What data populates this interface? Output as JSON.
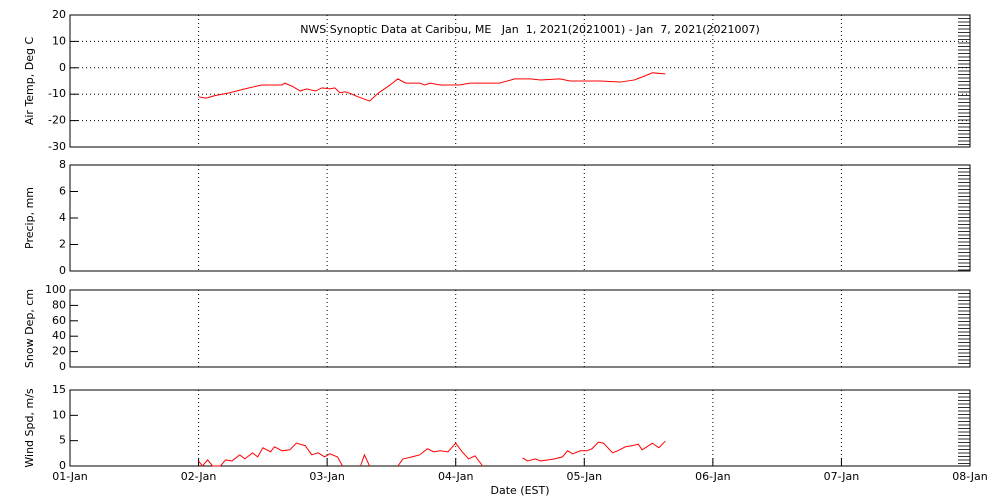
{
  "chart_data": [
    {
      "type": "line",
      "title": "NWS Synoptic Data at Caribou, ME   Jan  1, 2021(2021001) - Jan  7, 2021(2021007)",
      "ylabel": "Air Temp, Deg C",
      "ylim": [
        -30,
        20
      ],
      "yticks": [
        -30,
        -20,
        -10,
        0,
        10,
        20
      ],
      "xlim": [
        0,
        7
      ],
      "xticks": [
        1,
        2,
        3,
        4,
        5,
        6
      ],
      "grid": "both",
      "x": [
        1.0,
        1.06,
        1.13,
        1.24,
        1.36,
        1.49,
        1.65,
        1.67,
        1.73,
        1.79,
        1.84,
        1.91,
        1.96,
        2.02,
        2.06,
        2.1,
        2.14,
        2.19,
        2.24,
        2.33,
        2.4,
        2.49,
        2.55,
        2.61,
        2.72,
        2.76,
        2.8,
        2.88,
        3.03,
        3.11,
        3.34,
        3.46,
        3.58,
        3.66,
        3.81,
        3.89,
        4.12,
        4.28,
        4.39,
        4.47,
        4.53,
        4.63
      ],
      "series": [
        {
          "color": "#ff0000",
          "values": [
            -11,
            -11.5,
            -10.5,
            -9.5,
            -8,
            -6.5,
            -6.5,
            -5.8,
            -7,
            -8.8,
            -8,
            -8.8,
            -7.6,
            -8,
            -7.6,
            -9.5,
            -9.1,
            -9.9,
            -11,
            -12.6,
            -9.5,
            -6.5,
            -4.2,
            -5.8,
            -5.8,
            -6.5,
            -5.8,
            -6.5,
            -6.5,
            -5.8,
            -5.8,
            -4.2,
            -4.2,
            -4.6,
            -4.2,
            -5,
            -5,
            -5.4,
            -4.6,
            -3.1,
            -1.9,
            -2.3
          ]
        }
      ]
    },
    {
      "type": "line",
      "ylabel": "Precip, mm",
      "ylim": [
        0,
        8
      ],
      "yticks": [
        0,
        2,
        4,
        6,
        8
      ],
      "xlim": [
        0,
        7
      ],
      "xticks": [
        1,
        2,
        3,
        4,
        5,
        6
      ],
      "grid": "x"
    },
    {
      "type": "line",
      "ylabel": "Snow Dep, cm",
      "ylim": [
        0,
        100
      ],
      "yticks": [
        0,
        20,
        40,
        60,
        80,
        100
      ],
      "xlim": [
        0,
        7
      ],
      "xticks": [
        1,
        2,
        3,
        4,
        5,
        6
      ],
      "grid": "x"
    },
    {
      "type": "line",
      "ylabel": "Wind Spd, m/s",
      "xlabel": "Date (EST)",
      "ylim": [
        0,
        15
      ],
      "yticks": [
        0,
        5,
        10,
        15
      ],
      "xlim": [
        0,
        7
      ],
      "grid": "x",
      "xticks": [
        {
          "value": 0,
          "label": "01-Jan"
        },
        {
          "value": 1,
          "label": "02-Jan"
        },
        {
          "value": 2,
          "label": "03-Jan"
        },
        {
          "value": 3,
          "label": "04-Jan"
        },
        {
          "value": 4,
          "label": "05-Jan"
        },
        {
          "value": 5,
          "label": "06-Jan"
        },
        {
          "value": 6,
          "label": "07-Jan"
        },
        {
          "value": 7,
          "label": "08-Jan"
        }
      ],
      "x": [
        1.0,
        1.03,
        1.07,
        1.11,
        1.17,
        1.21,
        1.26,
        1.32,
        1.36,
        1.42,
        1.46,
        1.5,
        1.56,
        1.59,
        1.65,
        1.71,
        1.76,
        1.83,
        1.88,
        1.93,
        1.98,
        2.02,
        2.08,
        2.12,
        2.2,
        2.26,
        2.29,
        2.33,
        2.45,
        2.55,
        2.59,
        2.66,
        2.72,
        2.78,
        2.83,
        2.88,
        2.94,
        3.0,
        3.05,
        3.1,
        3.15,
        3.21,
        3.5,
        3.52,
        3.56,
        3.62,
        3.66,
        3.72,
        3.77,
        3.83,
        3.87,
        3.91,
        3.97,
        4.02,
        4.06,
        4.11,
        4.15,
        4.22,
        4.26,
        4.32,
        4.37,
        4.42,
        4.45,
        4.5,
        4.53,
        4.58,
        4.63
      ],
      "series": [
        {
          "color": "#ff0000",
          "values": [
            1.0,
            0,
            1.2,
            0,
            0,
            1.2,
            1.0,
            2.2,
            1.4,
            2.6,
            1.8,
            3.6,
            2.8,
            3.8,
            3.0,
            3.2,
            4.5,
            4.0,
            2.2,
            2.6,
            1.8,
            2.4,
            1.8,
            0,
            null,
            0,
            2.2,
            0,
            null,
            0,
            1.4,
            1.8,
            2.2,
            3.4,
            2.8,
            3.0,
            2.8,
            4.5,
            2.8,
            1.4,
            2.0,
            0,
            null,
            1.6,
            1.0,
            1.4,
            1.0,
            1.2,
            1.4,
            1.8,
            3.0,
            2.4,
            3.0,
            3.0,
            3.4,
            4.7,
            4.5,
            2.6,
            3.0,
            3.8,
            4.0,
            4.3,
            3.2,
            4.0,
            4.5,
            3.6,
            4.9
          ]
        }
      ]
    }
  ]
}
